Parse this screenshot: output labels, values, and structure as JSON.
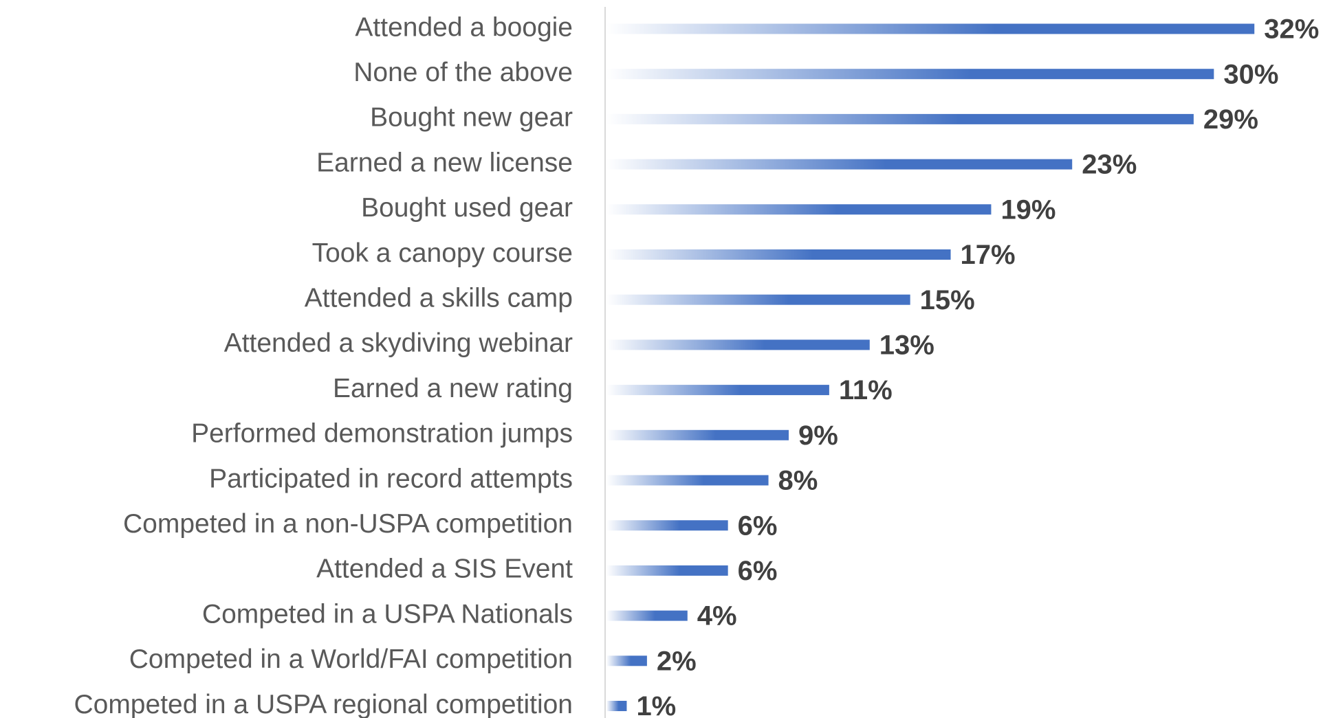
{
  "chart_data": {
    "type": "barh",
    "categories": [
      "Attended a boogie",
      "None of the above",
      "Bought new gear",
      "Earned a new license",
      "Bought used gear",
      "Took a canopy course",
      "Attended a skills camp",
      "Attended a skydiving webinar",
      "Earned a new rating",
      "Performed demonstration jumps",
      "Participated in record attempts",
      "Competed in a non-USPA competition",
      "Attended a SIS Event",
      "Competed in a USPA Nationals",
      "Competed in a World/FAI competition",
      "Competed in a USPA regional competition"
    ],
    "values": [
      32,
      30,
      29,
      23,
      19,
      17,
      15,
      13,
      11,
      9,
      8,
      6,
      6,
      4,
      2,
      1
    ],
    "value_labels": [
      "32%",
      "30%",
      "29%",
      "23%",
      "19%",
      "17%",
      "15%",
      "13%",
      "11%",
      "9%",
      "8%",
      "6%",
      "6%",
      "4%",
      "2%",
      "1%"
    ],
    "color": "#4472c4",
    "xlim": [
      0,
      36
    ]
  }
}
